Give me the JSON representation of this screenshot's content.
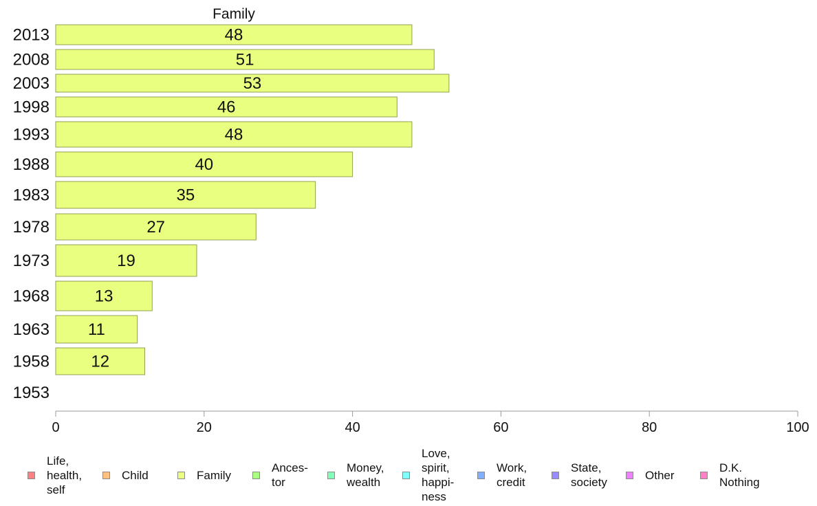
{
  "chart_data": {
    "type": "bar",
    "orientation": "horizontal",
    "title": "Family",
    "categories": [
      "2013",
      "2008",
      "2003",
      "1998",
      "1993",
      "1988",
      "1983",
      "1978",
      "1973",
      "1968",
      "1963",
      "1958",
      "1953"
    ],
    "series": [
      {
        "name": "Family",
        "color": "#e9ff80",
        "values": [
          48,
          51,
          53,
          46,
          48,
          40,
          35,
          27,
          19,
          13,
          11,
          12,
          null
        ],
        "value_labels": [
          "48",
          "51",
          "53",
          "46",
          "48",
          "40",
          "35",
          "27",
          "19",
          "13",
          "11",
          "12",
          ""
        ]
      }
    ],
    "xlim": [
      0,
      100
    ],
    "xticks": [
      "0",
      "20",
      "40",
      "60",
      "80",
      "100"
    ],
    "xlabel": "",
    "ylabel": "",
    "grid": false,
    "legend_position": "bottom",
    "legend": [
      {
        "label": "Life,\nhealth,\nself",
        "color": "#ff8080"
      },
      {
        "label": "Child",
        "color": "#ffc080"
      },
      {
        "label": "Family",
        "color": "#e9ff80"
      },
      {
        "label": "Ances-\ntor",
        "color": "#a8ff80"
      },
      {
        "label": "Money,\nwealth",
        "color": "#80ffb8"
      },
      {
        "label": "Love,\nspirit,\nhappi-\nness",
        "color": "#80ffff"
      },
      {
        "label": "Work,\ncredit",
        "color": "#80b0ff"
      },
      {
        "label": "State,\nsociety",
        "color": "#9a8aff"
      },
      {
        "label": "Other",
        "color": "#f080ff"
      },
      {
        "label": "D.K.\nNothing",
        "color": "#ff80c8"
      }
    ],
    "colors": {
      "bar_stroke": "#8fa050",
      "axis": "#999999"
    }
  }
}
